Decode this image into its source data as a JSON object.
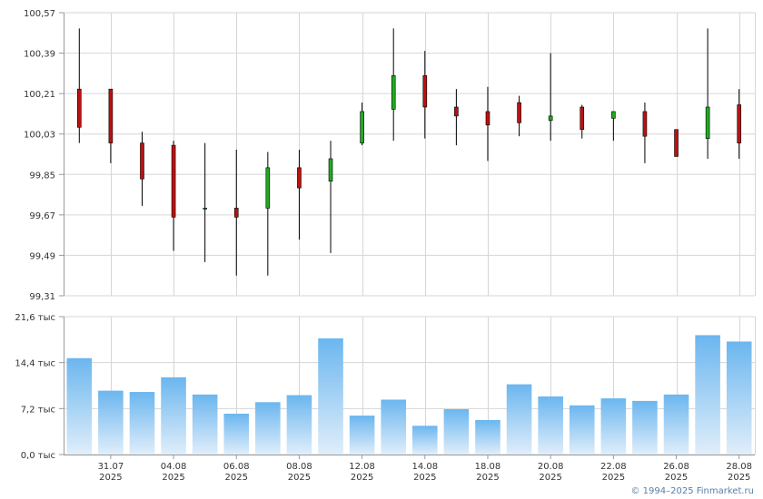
{
  "chart_data": [
    {
      "type": "candlestick",
      "ylim": [
        99.31,
        100.57
      ],
      "y_ticks": [
        "100,57",
        "100,39",
        "100,21",
        "100,03",
        "99,85",
        "99,67",
        "99,49",
        "99,31"
      ],
      "grid": true,
      "colors": {
        "up": "#22aa22",
        "down": "#bb1111",
        "wick": "#000000"
      },
      "candles": [
        {
          "date": "2025-07-30",
          "open": 100.23,
          "high": 100.5,
          "low": 99.99,
          "close": 100.06
        },
        {
          "date": "2025-07-31",
          "open": 100.23,
          "high": 100.23,
          "low": 99.9,
          "close": 99.99
        },
        {
          "date": "2025-08-01",
          "open": 99.99,
          "high": 100.04,
          "low": 99.71,
          "close": 99.83
        },
        {
          "date": "2025-08-04",
          "open": 99.98,
          "high": 100.0,
          "low": 99.51,
          "close": 99.66
        },
        {
          "date": "2025-08-05",
          "open": 99.7,
          "high": 99.99,
          "low": 99.46,
          "close": 99.7
        },
        {
          "date": "2025-08-06",
          "open": 99.7,
          "high": 99.96,
          "low": 99.4,
          "close": 99.66
        },
        {
          "date": "2025-08-07",
          "open": 99.7,
          "high": 99.95,
          "low": 99.4,
          "close": 99.88
        },
        {
          "date": "2025-08-08",
          "open": 99.88,
          "high": 99.96,
          "low": 99.56,
          "close": 99.79
        },
        {
          "date": "2025-08-11",
          "open": 99.82,
          "high": 100.0,
          "low": 99.5,
          "close": 99.92
        },
        {
          "date": "2025-08-12",
          "open": 99.99,
          "high": 100.17,
          "low": 99.98,
          "close": 100.13
        },
        {
          "date": "2025-08-13",
          "open": 100.14,
          "high": 100.5,
          "low": 100.0,
          "close": 100.29
        },
        {
          "date": "2025-08-14",
          "open": 100.29,
          "high": 100.4,
          "low": 100.01,
          "close": 100.15
        },
        {
          "date": "2025-08-15",
          "open": 100.15,
          "high": 100.23,
          "low": 99.98,
          "close": 100.11
        },
        {
          "date": "2025-08-18",
          "open": 100.13,
          "high": 100.24,
          "low": 99.91,
          "close": 100.07
        },
        {
          "date": "2025-08-19",
          "open": 100.17,
          "high": 100.2,
          "low": 100.02,
          "close": 100.08
        },
        {
          "date": "2025-08-20",
          "open": 100.09,
          "high": 100.39,
          "low": 100.0,
          "close": 100.11
        },
        {
          "date": "2025-08-21",
          "open": 100.15,
          "high": 100.16,
          "low": 100.01,
          "close": 100.05
        },
        {
          "date": "2025-08-22",
          "open": 100.1,
          "high": 100.13,
          "low": 100.0,
          "close": 100.13
        },
        {
          "date": "2025-08-25",
          "open": 100.13,
          "high": 100.17,
          "low": 99.9,
          "close": 100.02
        },
        {
          "date": "2025-08-26",
          "open": 100.05,
          "high": 100.05,
          "low": 99.93,
          "close": 99.93
        },
        {
          "date": "2025-08-27",
          "open": 100.01,
          "high": 100.5,
          "low": 99.92,
          "close": 100.15
        },
        {
          "date": "2025-08-28",
          "open": 100.16,
          "high": 100.23,
          "low": 99.92,
          "close": 99.99
        }
      ]
    },
    {
      "type": "bar",
      "ylim": [
        0,
        21.6
      ],
      "y_ticks": [
        "21,6 тыс",
        "14,4 тыс",
        "7,2 тыс",
        "0,0 тыс"
      ],
      "grid": true,
      "colors": {
        "bar_top": "#6bb6ef",
        "bar_bottom": "#e0eefa"
      },
      "x_tick_labels": [
        {
          "date": "2025-07-31",
          "day": "31.07",
          "year": "2025"
        },
        {
          "date": "2025-08-04",
          "day": "04.08",
          "year": "2025"
        },
        {
          "date": "2025-08-06",
          "day": "06.08",
          "year": "2025"
        },
        {
          "date": "2025-08-08",
          "day": "08.08",
          "year": "2025"
        },
        {
          "date": "2025-08-12",
          "day": "12.08",
          "year": "2025"
        },
        {
          "date": "2025-08-14",
          "day": "14.08",
          "year": "2025"
        },
        {
          "date": "2025-08-18",
          "day": "18.08",
          "year": "2025"
        },
        {
          "date": "2025-08-20",
          "day": "20.08",
          "year": "2025"
        },
        {
          "date": "2025-08-22",
          "day": "22.08",
          "year": "2025"
        },
        {
          "date": "2025-08-26",
          "day": "26.08",
          "year": "2025"
        },
        {
          "date": "2025-08-28",
          "day": "28.08",
          "year": "2025"
        }
      ],
      "bars": [
        {
          "date": "2025-07-30",
          "value": 15.1
        },
        {
          "date": "2025-07-31",
          "value": 10.0
        },
        {
          "date": "2025-08-01",
          "value": 9.8
        },
        {
          "date": "2025-08-04",
          "value": 12.1
        },
        {
          "date": "2025-08-05",
          "value": 9.4
        },
        {
          "date": "2025-08-06",
          "value": 6.4
        },
        {
          "date": "2025-08-07",
          "value": 8.2
        },
        {
          "date": "2025-08-08",
          "value": 9.3
        },
        {
          "date": "2025-08-11",
          "value": 18.2
        },
        {
          "date": "2025-08-12",
          "value": 6.1
        },
        {
          "date": "2025-08-13",
          "value": 8.6
        },
        {
          "date": "2025-08-14",
          "value": 4.5
        },
        {
          "date": "2025-08-15",
          "value": 7.1
        },
        {
          "date": "2025-08-18",
          "value": 5.4
        },
        {
          "date": "2025-08-19",
          "value": 11.0
        },
        {
          "date": "2025-08-20",
          "value": 9.1
        },
        {
          "date": "2025-08-21",
          "value": 7.7
        },
        {
          "date": "2025-08-22",
          "value": 8.8
        },
        {
          "date": "2025-08-25",
          "value": 8.4
        },
        {
          "date": "2025-08-26",
          "value": 9.4
        },
        {
          "date": "2025-08-27",
          "value": 18.7
        },
        {
          "date": "2025-08-28",
          "value": 17.7
        }
      ]
    }
  ],
  "footer": {
    "copyright": "© 1994–2025 Finmarket.ru"
  }
}
